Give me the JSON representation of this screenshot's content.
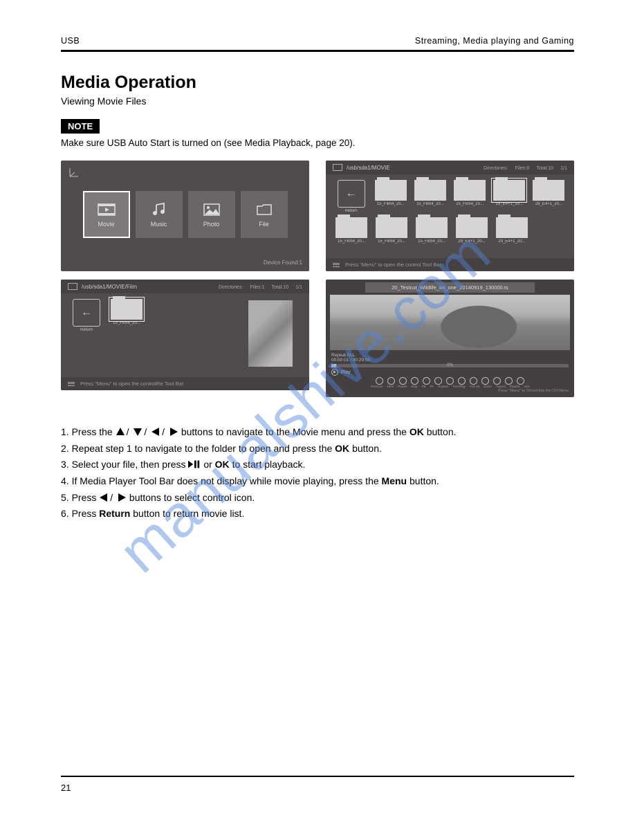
{
  "header": {
    "section": "USB",
    "owner": "Streaming, Media playing and Gaming"
  },
  "title": "Media Operation",
  "subtitle": "Viewing Movie Files",
  "note": {
    "label": "NOTE",
    "text": "Make sure USB Auto Start is turned on (see Media Playback, page 20)."
  },
  "screenshot_a": {
    "bg": "#504c4d",
    "tiles": [
      {
        "key": "movie",
        "label": "Movie",
        "selected": true
      },
      {
        "key": "music",
        "label": "Music",
        "selected": false
      },
      {
        "key": "photo",
        "label": "Photo",
        "selected": false
      },
      {
        "key": "file",
        "label": "File",
        "selected": false
      }
    ],
    "device_found": "Device Found:1"
  },
  "screenshot_b": {
    "path": "/usb/sda1/MOVIE",
    "meta": {
      "directories": "Directories:",
      "files": "Files:0",
      "total": "Total:10",
      "page": "1/1"
    },
    "row1": [
      {
        "type": "return",
        "label": "Return"
      },
      {
        "type": "folder",
        "label": "15_Film4_20..."
      },
      {
        "type": "folder",
        "label": "15_Film4_20..."
      },
      {
        "type": "folder",
        "label": "15_Film4_20..."
      },
      {
        "type": "folder",
        "label": "29_E4+1_20...",
        "selected": true
      },
      {
        "type": "folder",
        "label": "29_E4+1_20..."
      }
    ],
    "row2": [
      {
        "type": "folder",
        "label": "15_Film4_20..."
      },
      {
        "type": "folder",
        "label": "15_Film4_20..."
      },
      {
        "type": "folder",
        "label": "15_Film4_20..."
      },
      {
        "type": "folder",
        "label": "29_E4+1_20..."
      },
      {
        "type": "folder",
        "label": "29_E4+1_20..."
      }
    ],
    "footer_hint": "Press  \"Menu\"  to open the control Tool Bar"
  },
  "screenshot_c": {
    "path": "/usb/sda1/MOVIE/Film",
    "meta": {
      "directories": "Directories:",
      "files": "Files:1",
      "total": "Total:10",
      "page": "1/1"
    },
    "items": [
      {
        "type": "return",
        "label": "Return"
      },
      {
        "type": "file",
        "label": "15_Film4_20...",
        "selected": true
      }
    ],
    "footer_hint": "Press  \"Menu\"  to open the controlthe Tool Bar"
  },
  "screenshot_d": {
    "title": "20_Testcut_Wildlife_on_one_20140919_130000.ts",
    "repeat": "Repeat:ALL",
    "time": "00:00:01 / 00:29:58",
    "percent": "0%",
    "play_label": "Play",
    "buttons": [
      "Previous",
      "Next",
      "Pause",
      "Stop",
      "FB",
      "FF",
      "Repeat",
      "TimePlay",
      "A-B rpt",
      "Zoom",
      "Aspect",
      "Playlist",
      "Info"
    ],
    "foot_hint": "Press  \"Menu\"  to Show/Hide the Ctrl Menu"
  },
  "instructions": {
    "l1a": "1. Press the ",
    "l1b": " buttons to navigate to the Movie menu and press the ",
    "l1c": "OK",
    "l1d": " button.",
    "l2a": "2. Repeat step 1 to navigate to the folder to open and press the ",
    "l2b": "OK",
    "l2c": " button.",
    "l3a": "3. Select your file, then press ",
    "l3b": " or ",
    "l3c": "OK",
    "l3d": " to start playback.",
    "l4a": "4. If Media Player Tool Bar does not display while movie playing, press the ",
    "l4b": "Menu",
    "l4c": " button.",
    "l5a": "5. Press ",
    "l5b": " buttons to select control icon.",
    "l6a": "6. Press ",
    "l6b": "Return",
    "l6c": " button to return movie list."
  },
  "footer": {
    "page": "21"
  },
  "colors": {
    "panel": "#504c4d",
    "panel_dark": "#454142",
    "tile": "#6a6667",
    "folder": "#d7d4d5",
    "text_light": "#c8c6c6"
  },
  "watermark": "manualshive.com"
}
